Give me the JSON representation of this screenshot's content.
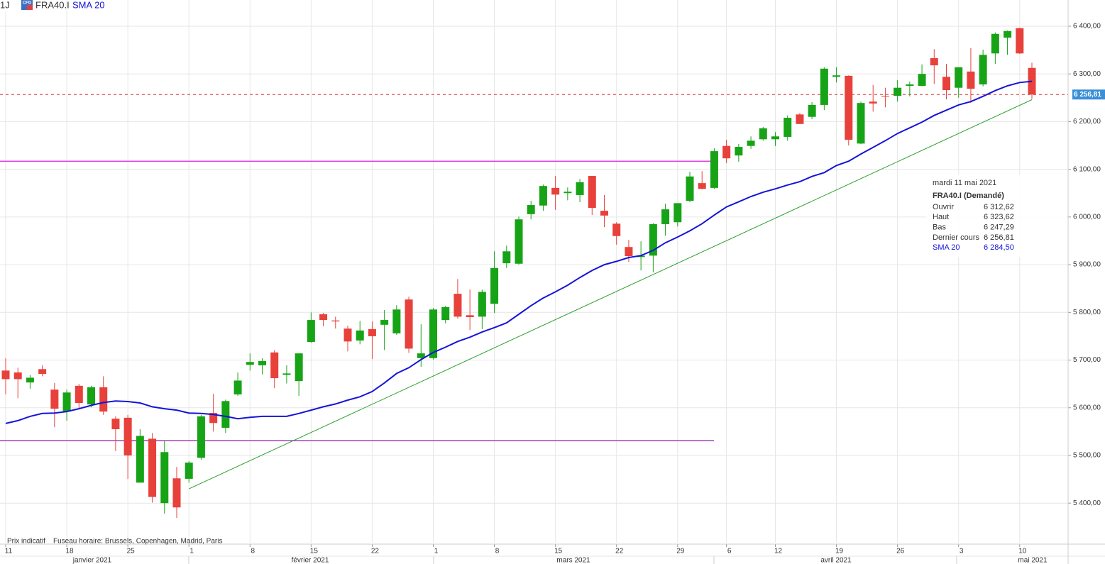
{
  "chart_data": {
    "type": "candlestick",
    "timeframe": "1J",
    "icon": "CFD",
    "symbol": "FRA40.I",
    "categories": [
      "11",
      null,
      null,
      null,
      null,
      "18",
      null,
      null,
      null,
      null,
      "25",
      null,
      null,
      null,
      null,
      "1",
      null,
      null,
      null,
      null,
      "8",
      null,
      null,
      null,
      null,
      "15",
      null,
      null,
      null,
      null,
      "22",
      null,
      null,
      null,
      null,
      "1",
      null,
      null,
      null,
      null,
      "8",
      null,
      null,
      null,
      null,
      "15",
      null,
      null,
      null,
      null,
      "22",
      null,
      null,
      null,
      null,
      "29",
      null,
      null,
      null,
      "6",
      null,
      null,
      null,
      "12",
      null,
      null,
      null,
      null,
      "19",
      null,
      null,
      null,
      null,
      "26",
      null,
      null,
      null,
      null,
      "3",
      null,
      null,
      null,
      null,
      "10",
      null
    ],
    "months": [
      "janvier 2021",
      "février 2021",
      "mars 2021",
      "avril 2021",
      "mai 2021"
    ],
    "open": [
      5678,
      5674,
      5653,
      5681,
      5638,
      5592,
      5646,
      5607,
      5643,
      5577,
      5579,
      5443,
      5535,
      5400,
      5452,
      5451,
      5495,
      5589,
      5558,
      5628,
      5690,
      5689,
      5716,
      5669,
      5656,
      5738,
      5796,
      5783,
      5766,
      5741,
      5765,
      5774,
      5756,
      5827,
      5704,
      5704,
      5784,
      5839,
      5794,
      5791,
      5818,
      5903,
      5902,
      6006,
      6024,
      6061,
      6050,
      6046,
      6086,
      6013,
      5986,
      5937,
      5916,
      5919,
      5985,
      5989,
      6034,
      6071,
      6061,
      6149,
      6129,
      6149,
      6163,
      6163,
      6168,
      6215,
      6210,
      6235,
      6294,
      6296,
      6154,
      6242,
      6254,
      6254,
      6275,
      6275,
      6333,
      6294,
      6271,
      6305,
      6278,
      6343,
      6376,
      6396,
      6312.62
    ],
    "high": [
      5704,
      5684,
      5669,
      5689,
      5652,
      5638,
      5650,
      5646,
      5666,
      5582,
      5585,
      5555,
      5547,
      5532,
      5476,
      5488,
      5585,
      5629,
      5617,
      5674,
      5714,
      5704,
      5721,
      5689,
      5714,
      5800,
      5799,
      5791,
      5772,
      5782,
      5781,
      5805,
      5815,
      5833,
      5775,
      5809,
      5814,
      5870,
      5848,
      5848,
      5928,
      5940,
      6001,
      6034,
      6068,
      6086,
      6062,
      6080,
      6086,
      6046,
      5989,
      5952,
      5949,
      5987,
      6028,
      6029,
      6095,
      6096,
      6144,
      6162,
      6153,
      6169,
      6189,
      6178,
      6213,
      6218,
      6241,
      6314,
      6314,
      6297,
      6242,
      6277,
      6271,
      6287,
      6284,
      6320,
      6352,
      6321,
      6314,
      6354,
      6351,
      6387,
      6391,
      6397,
      6323.62
    ],
    "low": [
      5628,
      5620,
      5640,
      5666,
      5559,
      5573,
      5599,
      5601,
      5585,
      5509,
      5451,
      5443,
      5401,
      5378,
      5369,
      5443,
      5491,
      5550,
      5547,
      5625,
      5678,
      5670,
      5641,
      5651,
      5625,
      5736,
      5771,
      5766,
      5718,
      5733,
      5702,
      5721,
      5753,
      5715,
      5686,
      5701,
      5777,
      5787,
      5763,
      5765,
      5799,
      5893,
      5900,
      5995,
      6013,
      6015,
      6035,
      6031,
      6004,
      5979,
      5942,
      5906,
      5888,
      5884,
      5961,
      5980,
      6031,
      6058,
      6059,
      6113,
      6116,
      6143,
      6160,
      6149,
      6160,
      6195,
      6205,
      6224,
      6282,
      6150,
      6153,
      6221,
      6230,
      6242,
      6253,
      6274,
      6279,
      6247,
      6250,
      6239,
      6274,
      6321,
      6340,
      6342,
      6247.29
    ],
    "close": [
      5660,
      5660,
      5663,
      5671,
      5598,
      5632,
      5610,
      5643,
      5592,
      5555,
      5500,
      5541,
      5413,
      5507,
      5391,
      5485,
      5582,
      5568,
      5614,
      5657,
      5696,
      5698,
      5662,
      5672,
      5714,
      5784,
      5784,
      5781,
      5739,
      5762,
      5750,
      5784,
      5806,
      5724,
      5714,
      5806,
      5811,
      5791,
      5790,
      5843,
      5893,
      5928,
      5995,
      6025,
      6065,
      6047,
      6053,
      6073,
      6019,
      6003,
      5960,
      5918,
      5919,
      5985,
      6016,
      6029,
      6085,
      6059,
      6138,
      6123,
      6147,
      6160,
      6186,
      6169,
      6208,
      6195,
      6235,
      6311,
      6297,
      6162,
      6239,
      6238,
      6253,
      6271,
      6278,
      6300,
      6318,
      6266,
      6314,
      6269,
      6340,
      6384,
      6390,
      6343,
      6256.81
    ],
    "up_color": "#16a316",
    "down_color": "#e8403a",
    "series": [
      {
        "name": "SMA 20",
        "color": "#1414d8",
        "values": [
          5567,
          5573,
          5582,
          5588,
          5589,
          5592,
          5598,
          5605,
          5611,
          5614,
          5613,
          5610,
          5602,
          5598,
          5595,
          5589,
          5588,
          5586,
          5582,
          5577,
          5580,
          5582,
          5582,
          5582,
          5588,
          5595,
          5602,
          5608,
          5616,
          5623,
          5634,
          5652,
          5672,
          5684,
          5701,
          5716,
          5727,
          5739,
          5748,
          5759,
          5768,
          5778,
          5796,
          5814,
          5830,
          5843,
          5857,
          5873,
          5888,
          5900,
          5907,
          5915,
          5919,
          5930,
          5946,
          5958,
          5971,
          5986,
          6004,
          6021,
          6032,
          6043,
          6052,
          6059,
          6067,
          6074,
          6085,
          6093,
          6108,
          6117,
          6132,
          6146,
          6160,
          6175,
          6187,
          6199,
          6213,
          6224,
          6235,
          6242,
          6253,
          6265,
          6275,
          6282,
          6284.5
        ]
      }
    ],
    "levels": [
      {
        "value": 6117,
        "color": "#e040e0"
      },
      {
        "value": 5531,
        "color": "#a040b8"
      }
    ],
    "last_price": {
      "value": 6256.81,
      "label": "6 256,81",
      "color": "#e03030"
    },
    "trendline": {
      "points": [
        [
          15,
          5430
        ],
        [
          84,
          6246
        ]
      ],
      "color": "#2ca02c"
    },
    "ylim": [
      5317,
      6455
    ],
    "yticks": [
      {
        "value": 5400,
        "label": "5 400,00"
      },
      {
        "value": 5500,
        "label": "5 500,00"
      },
      {
        "value": 5600,
        "label": "5 600,00"
      },
      {
        "value": 5700,
        "label": "5 700,00"
      },
      {
        "value": 5800,
        "label": "5 800,00"
      },
      {
        "value": 5900,
        "label": "5 900,00"
      },
      {
        "value": 6000,
        "label": "6 000,00"
      },
      {
        "value": 6100,
        "label": "6 100,00"
      },
      {
        "value": 6200,
        "label": "6 200,00"
      },
      {
        "value": 6300,
        "label": "6 300,00"
      },
      {
        "value": 6400,
        "label": "6 400,00"
      }
    ],
    "grid": true,
    "notes": [
      "Prix indicatif",
      "Fuseau horaire: Brussels, Copenhagen, Madrid, Paris"
    ],
    "tooltip": {
      "date": "mardi 11 mai 2021",
      "title": "FRA40.I (Demandé)",
      "rows": [
        {
          "label": "Ouvrir",
          "value": "6 312,62"
        },
        {
          "label": "Haut",
          "value": "6 323,62"
        },
        {
          "label": "Bas",
          "value": "6 247,29"
        },
        {
          "label": "Dernier cours",
          "value": "6 256,81"
        },
        {
          "label": "SMA 20",
          "value": "6 284,50"
        }
      ]
    }
  }
}
